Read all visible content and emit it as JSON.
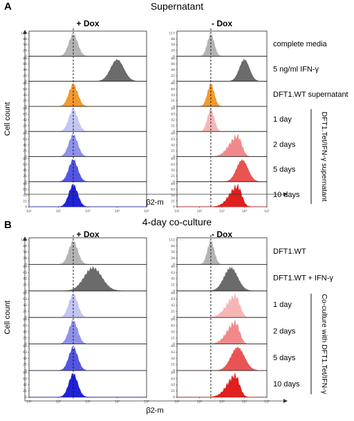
{
  "chart_data": [
    {
      "type": "histogram-overlay",
      "panel": "A",
      "title": "Supernatant",
      "columns": [
        "+ Dox",
        "- Dox"
      ],
      "xlabel": "β2-m",
      "ylabel": "Cell count",
      "x_scale": "log",
      "xlim": [
        10,
        100000
      ],
      "x_ticks": [
        "10¹",
        "10²",
        "10³",
        "10⁴",
        "10⁵"
      ],
      "y_ticks": {
        "0": [
          "0",
          "29",
          "59",
          "88",
          "117"
        ],
        "1": [
          "0",
          "22",
          "44",
          "66",
          "88"
        ],
        "2": [
          "0",
          "21",
          "43",
          "64",
          "86"
        ],
        "3": [
          "0",
          "21",
          "42",
          "63",
          "84"
        ],
        "4": [
          "0",
          "21",
          "42",
          "63",
          "84"
        ],
        "5": [
          "0",
          "21",
          "42",
          "63",
          "84"
        ],
        "6": [
          "0",
          "21",
          "42",
          "63",
          "84"
        ]
      },
      "reference_line_x": 320,
      "group_label": "DFT1.Tet/IFN-γ supernatant",
      "rows": [
        {
          "label": "complete media",
          "color": "#b4b4b4",
          "plus_dox": {
            "peak": 320,
            "width": 0.15,
            "shape": "single"
          },
          "minus_dox": {
            "peak": 320,
            "width": 0.15,
            "shape": "single"
          }
        },
        {
          "label": "5 ng/ml IFN-γ",
          "color": "#6b6b6b",
          "plus_dox": {
            "peak": 10000,
            "width": 0.22,
            "shape": "single"
          },
          "minus_dox": {
            "peak": 10000,
            "width": 0.22,
            "shape": "single"
          }
        },
        {
          "label": "DFT1.WT supernatant",
          "color": "#f39a2e",
          "plus_dox": {
            "peak": 320,
            "width": 0.15,
            "shape": "single"
          },
          "minus_dox": {
            "peak": 320,
            "width": 0.15,
            "shape": "single"
          }
        },
        {
          "label": "1 day",
          "plus_color": "#c3c5f3",
          "minus_color": "#f6b6b6",
          "plus_dox": {
            "peak": 320,
            "width": 0.15,
            "shape": "single"
          },
          "minus_dox": {
            "peak": 320,
            "width": 0.15,
            "shape": "single"
          }
        },
        {
          "label": "2 days",
          "plus_color": "#8f92ea",
          "minus_color": "#f08a8a",
          "plus_dox": {
            "peak": 320,
            "width": 0.15,
            "shape": "single"
          },
          "minus_dox": {
            "peak": 5000,
            "width": 0.4,
            "shape": "broad"
          }
        },
        {
          "label": "5 days",
          "plus_color": "#5356e0",
          "minus_color": "#ea5353",
          "plus_dox": {
            "peak": 320,
            "width": 0.15,
            "shape": "single"
          },
          "minus_dox": {
            "peak": 8000,
            "width": 0.25,
            "shape": "single"
          }
        },
        {
          "label": "10 days",
          "plus_color": "#1f22d6",
          "minus_color": "#e01f1f",
          "plus_dox": {
            "peak": 320,
            "width": 0.15,
            "shape": "single"
          },
          "minus_dox": {
            "peak": 5000,
            "width": 0.4,
            "shape": "broad"
          }
        }
      ]
    },
    {
      "type": "histogram-overlay",
      "panel": "B",
      "title": "4-day co-culture",
      "columns": [
        "+ Dox",
        "- Dox"
      ],
      "xlabel": "β2-m",
      "ylabel": "Cell count",
      "x_scale": "log",
      "xlim": [
        10,
        100000
      ],
      "x_ticks": [
        "10¹",
        "10²",
        "10³",
        "10⁴",
        "10⁵"
      ],
      "y_ticks": {
        "0": [
          "0",
          "28",
          "56",
          "84",
          "112"
        ],
        "1": [
          "0",
          "21",
          "42",
          "63",
          "84"
        ],
        "2": [
          "0",
          "21",
          "42",
          "63",
          "84"
        ],
        "3": [
          "0",
          "21",
          "42",
          "63",
          "84"
        ],
        "4": [
          "0",
          "21",
          "42",
          "63",
          "84"
        ],
        "5": [
          "0",
          "21",
          "42",
          "63",
          "84"
        ]
      },
      "reference_line_x": 320,
      "group_label": "Co-culture with DFT1.Tet/IFN-γ",
      "rows": [
        {
          "label": "DFT1.WT",
          "color": "#b4b4b4",
          "plus_dox": {
            "peak": 320,
            "width": 0.15,
            "shape": "single"
          },
          "minus_dox": {
            "peak": 320,
            "width": 0.15,
            "shape": "single"
          }
        },
        {
          "label": "DFT1.WT + IFN-γ",
          "color": "#6b6b6b",
          "plus_dox": {
            "peak": 1500,
            "width": 0.3,
            "shape": "single"
          },
          "minus_dox": {
            "peak": 2500,
            "width": 0.3,
            "shape": "single"
          }
        },
        {
          "label": "1 day",
          "plus_color": "#c3c5f3",
          "minus_color": "#f6b6b6",
          "plus_dox": {
            "peak": 320,
            "width": 0.15,
            "shape": "single"
          },
          "minus_dox": {
            "peak": 4000,
            "width": 0.42,
            "shape": "broad"
          }
        },
        {
          "label": "2 days",
          "plus_color": "#8f92ea",
          "minus_color": "#f08a8a",
          "plus_dox": {
            "peak": 320,
            "width": 0.15,
            "shape": "single"
          },
          "minus_dox": {
            "peak": 4000,
            "width": 0.4,
            "shape": "broad"
          }
        },
        {
          "label": "5 days",
          "plus_color": "#5356e0",
          "minus_color": "#ea5353",
          "plus_dox": {
            "peak": 320,
            "width": 0.15,
            "shape": "single"
          },
          "minus_dox": {
            "peak": 5000,
            "width": 0.3,
            "shape": "single"
          }
        },
        {
          "label": "10 days",
          "plus_color": "#1f22d6",
          "minus_color": "#e01f1f",
          "plus_dox": {
            "peak": 320,
            "width": 0.15,
            "shape": "single"
          },
          "minus_dox": {
            "peak": 4000,
            "width": 0.4,
            "shape": "broad"
          }
        }
      ]
    }
  ]
}
